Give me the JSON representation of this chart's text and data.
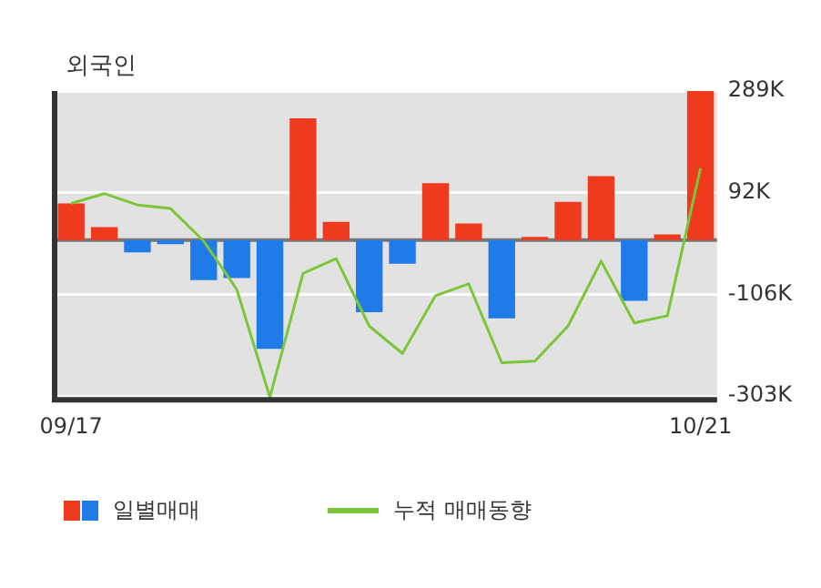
{
  "chart_data": {
    "type": "bar",
    "title": "외국인",
    "categories": [
      "09/17",
      null,
      null,
      null,
      null,
      null,
      null,
      null,
      null,
      null,
      null,
      null,
      null,
      null,
      null,
      null,
      null,
      null,
      null,
      "10/21"
    ],
    "series": [
      {
        "name": "일별매매",
        "colors": [
          "#f03a1e",
          "#f03a1e",
          "#1e7be8",
          "#1e7be8",
          "#1e7be8",
          "#1e7be8",
          "#1e7be8",
          "#f03a1e",
          "#f03a1e",
          "#1e7be8",
          "#1e7be8",
          "#f03a1e",
          "#f03a1e",
          "#1e7be8",
          "#f03a1e",
          "#f03a1e",
          "#f03a1e",
          "#1e7be8",
          "#f03a1e",
          "#f03a1e"
        ],
        "values": [
          71,
          25,
          -24,
          -8,
          -78,
          -74,
          -211,
          236,
          35,
          -140,
          -46,
          110,
          32,
          -152,
          6,
          74,
          124,
          -118,
          11,
          289
        ]
      },
      {
        "name": "누적 매매동향",
        "type": "line",
        "color": "#7cc63a",
        "values": [
          71,
          90,
          68,
          61,
          -2,
          -96,
          -305,
          -65,
          -36,
          -167,
          -220,
          -108,
          -85,
          -238,
          -235,
          -167,
          -41,
          -161,
          -147,
          139
        ]
      }
    ],
    "ylim": [
      -310,
      289
    ],
    "yticks": [
      {
        "value": 289,
        "label": "289K"
      },
      {
        "value": 92,
        "label": "92K"
      },
      {
        "value": -106,
        "label": "-106K"
      },
      {
        "value": -303,
        "label": "-303K"
      }
    ],
    "grid": "y",
    "legend": "bottom",
    "marker": "none"
  }
}
